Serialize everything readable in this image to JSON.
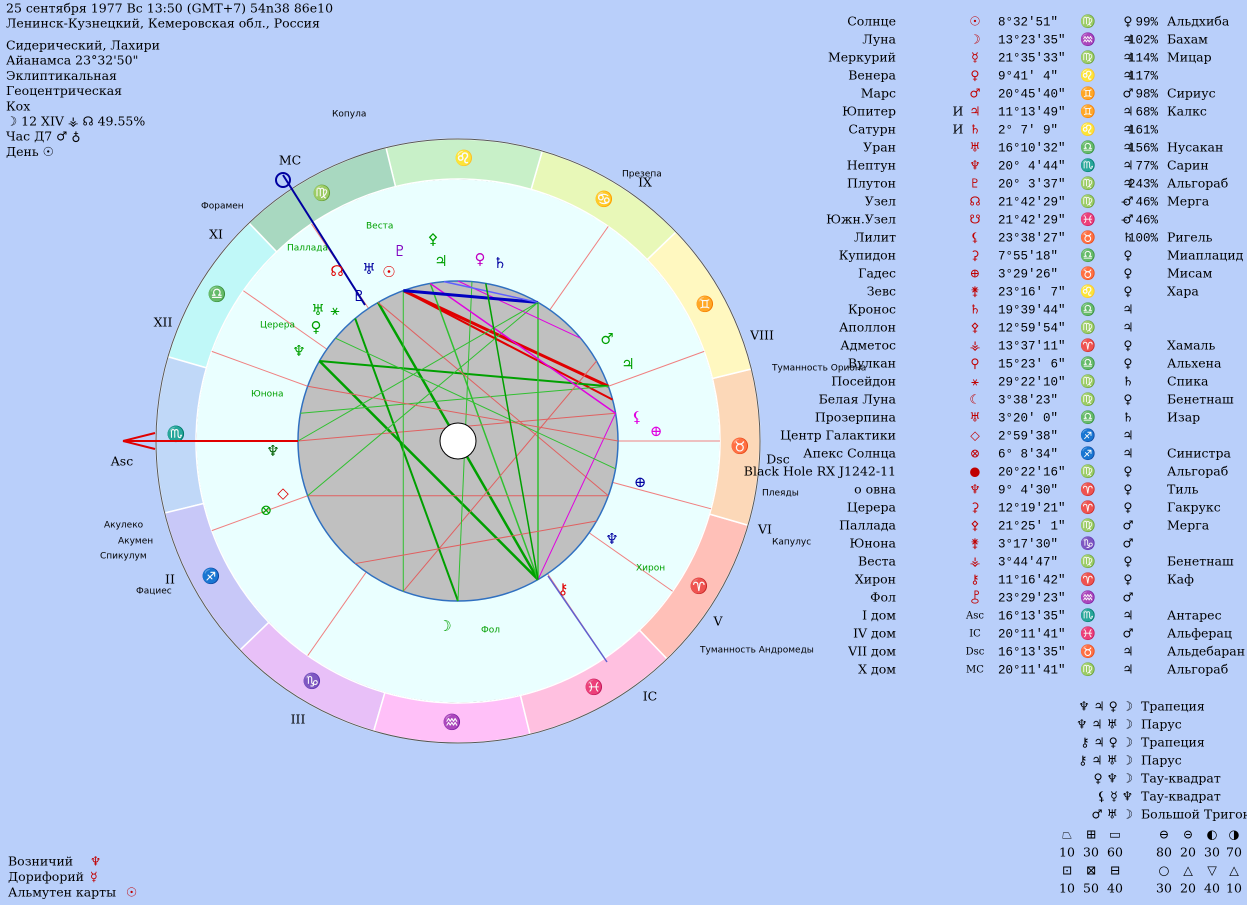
{
  "header": {
    "lines": [
      "25 сентября 1977  Вс  13:50 (GMT+7) 54n38  86e10",
      "Ленинск-Кузнецкий, Кемеровская обл., Россия"
    ],
    "settings": [
      "Сидерический, Лахири",
      "Айанамса 23°32'50\"",
      "Эклиптикальная",
      "Геоцентрическая",
      "Кох",
      "☽  12 XIV  ⚶  ☊ 49.55%",
      "Час Д7 ♂ ♁",
      "День ☉"
    ]
  },
  "planets": [
    {
      "name": "Солнце",
      "glyph": "☉",
      "position": "8°32'51\"",
      "sign": "♍",
      "ruler": "♀",
      "strength": "99%",
      "star": "Альдхиба"
    },
    {
      "name": "Луна",
      "glyph": "☽",
      "position": "13°23'35\"",
      "sign": "♒",
      "ruler": "♃",
      "strength": "102%",
      "star": "Бахам"
    },
    {
      "name": "Меркурий",
      "glyph": "☿",
      "position": "21°35'33\"",
      "sign": "♍",
      "ruler": "♃",
      "strength": "114%",
      "star": "Мицар"
    },
    {
      "name": "Венера",
      "glyph": "♀",
      "position": "9°41' 4\"",
      "sign": "♌",
      "ruler": "♃",
      "strength": "117%"
    },
    {
      "name": "Марс",
      "glyph": "♂",
      "position": "20°45'40\"",
      "sign": "♊",
      "ruler": "♂",
      "strength": "98%",
      "star": "Сириус"
    },
    {
      "name": "Юпитер",
      "retro": "И",
      "glyph": "♃",
      "position": "11°13'49\"",
      "sign": "♊",
      "ruler": "♃",
      "strength": "68%",
      "star": "Калкс"
    },
    {
      "name": "Сатурн",
      "retro": "И",
      "glyph": "♄",
      "position": "2° 7' 9\"",
      "sign": "♌",
      "ruler": "♃",
      "strength": "161%"
    },
    {
      "name": "Уран",
      "glyph": "♅",
      "position": "16°10'32\"",
      "sign": "♎",
      "ruler": "♃",
      "strength": "156%",
      "star": "Нусакан"
    },
    {
      "name": "Нептун",
      "glyph": "♆",
      "position": "20° 4'44\"",
      "sign": "♏",
      "ruler": "♃",
      "strength": "77%",
      "star": "Сарин"
    },
    {
      "name": "Плутон",
      "glyph": "♇",
      "position": "20° 3'37\"",
      "sign": "♍",
      "ruler": "♃",
      "strength": "243%",
      "star": "Альгораб"
    },
    {
      "name": "Узел",
      "glyph": "☊",
      "position": "21°42'29\"",
      "sign": "♍",
      "ruler": "♂",
      "strength": "– 46%",
      "star": "Мерга"
    },
    {
      "name": "Южн.Узел",
      "glyph": "☋",
      "position": "21°42'29\"",
      "sign": "♓",
      "ruler": "♂",
      "strength": "– 46%"
    },
    {
      "name": "Лилит",
      "glyph": "⚸",
      "position": "23°38'27\"",
      "sign": "♉",
      "ruler": "♄",
      "strength": "100%",
      "star": "Ригель"
    },
    {
      "name": "Купидон",
      "glyph": "⚳",
      "position": "7°55'18\"",
      "sign": "♎",
      "ruler": "♀",
      "star": "Миаплацид"
    },
    {
      "name": "Гадес",
      "glyph": "⊕",
      "position": "3°29'26\"",
      "sign": "♉",
      "ruler": "♀",
      "star": "Мисам"
    },
    {
      "name": "Зевс",
      "glyph": "⚵",
      "position": "23°16' 7\"",
      "sign": "♌",
      "ruler": "♀",
      "star": "Хара"
    },
    {
      "name": "Кронос",
      "glyph": "♄",
      "position": "19°39'44\"",
      "sign": "♎",
      "ruler": "♃"
    },
    {
      "name": "Аполлон",
      "glyph": "⚴",
      "position": "12°59'54\"",
      "sign": "♍",
      "ruler": "♃"
    },
    {
      "name": "Адметос",
      "glyph": "⚶",
      "position": "13°37'11\"",
      "sign": "♈",
      "ruler": "♀",
      "star": "Хамаль"
    },
    {
      "name": "Вулкан",
      "glyph": "⚲",
      "position": "15°23' 6\"",
      "sign": "♎",
      "ruler": "♀",
      "star": "Альхена"
    },
    {
      "name": "Посейдон",
      "glyph": "⚹",
      "position": "29°22'10\"",
      "sign": "♍",
      "ruler": "♄",
      "star": "Спика"
    },
    {
      "name": "Белая Луна",
      "glyph": "☾",
      "position": "3°38'23\"",
      "sign": "♍",
      "ruler": "♀",
      "star": "Бенетнаш"
    },
    {
      "name": "Прозерпина",
      "glyph": "♅",
      "position": "3°20' 0\"",
      "sign": "♎",
      "ruler": "♄",
      "star": "Изар"
    },
    {
      "name": "Центр Галактики",
      "glyph": "◇",
      "position": "2°59'38\"",
      "sign": "♐",
      "ruler": "♃"
    },
    {
      "name": "Апекс Солнца",
      "glyph": "⊗",
      "position": "6° 8'34\"",
      "sign": "♐",
      "ruler": "♃",
      "star": "Синистра"
    },
    {
      "name": "Black Hole RX J1242-11",
      "glyph": "●",
      "position": "20°22'16\"",
      "sign": "♍",
      "ruler": "♀",
      "star": "Альгораб"
    },
    {
      "name": "о овна",
      "glyph": "♆",
      "position": "9° 4'30\"",
      "sign": "♈",
      "ruler": "♀",
      "star": "Тиль"
    },
    {
      "name": "Церера",
      "glyph": "⚳",
      "position": "12°19'21\"",
      "sign": "♈",
      "ruler": "♀",
      "star": "Гакрукс"
    },
    {
      "name": "Паллада",
      "glyph": "⚴",
      "position": "21°25' 1\"",
      "sign": "♍",
      "ruler": "♂",
      "star": "Мерга"
    },
    {
      "name": "Юнона",
      "glyph": "⚵",
      "position": "3°17'30\"",
      "sign": "♑",
      "ruler": "♂"
    },
    {
      "name": "Веста",
      "glyph": "⚶",
      "position": "3°44'47\"",
      "sign": "♍",
      "ruler": "♀",
      "star": "Бенетнаш"
    },
    {
      "name": "Хирон",
      "glyph": "⚷",
      "position": "11°16'42\"",
      "sign": "♈",
      "ruler": "♀",
      "star": "Каф"
    },
    {
      "name": "Фол",
      "glyph": "⯛",
      "position": "23°29'23\"",
      "sign": "♒",
      "ruler": "♂"
    },
    {
      "name": "I дом",
      "glyph": "Asc",
      "position": "16°13'35\"",
      "sign": "♏",
      "ruler": "♃",
      "star": "Антарес"
    },
    {
      "name": "IV дом",
      "glyph": "IC",
      "position": "20°11'41\"",
      "sign": "♓",
      "ruler": "♂",
      "star": "Альферац"
    },
    {
      "name": "VII дом",
      "glyph": "Dsc",
      "position": "16°13'35\"",
      "sign": "♉",
      "ruler": "♃",
      "star": "Альдебаран"
    },
    {
      "name": "X дом",
      "glyph": "MC",
      "position": "20°11'41\"",
      "sign": "♍",
      "ruler": "♃",
      "star": "Альгораб"
    }
  ],
  "configurations": [
    {
      "glyphs": "♆ ♃ ♀ ☽",
      "name": "Трапеция"
    },
    {
      "glyphs": "♆ ♃ ♅ ☽",
      "name": "Парус"
    },
    {
      "glyphs": "⚷ ♃ ♀ ☽",
      "name": "Трапеция"
    },
    {
      "glyphs": "⚷ ♃ ♅ ☽",
      "name": "Парус"
    },
    {
      "glyphs": "♀ ♆ ☽",
      "name": "Тау-квадрат"
    },
    {
      "glyphs": "⚸ ☿ ♆",
      "name": "Тау-квадрат"
    },
    {
      "glyphs": "♂ ♅ ☽",
      "name": "Большой Тригон"
    }
  ],
  "rulers": [
    {
      "label": "Возничий",
      "glyph": "♆"
    },
    {
      "label": "Дорифорий",
      "glyph": "☿"
    },
    {
      "label": "Альмутен карты",
      "glyph": "☉"
    }
  ],
  "balance": {
    "rows": [
      {
        "glyphs": [
          "⏢",
          "⊞",
          "▭",
          "⊖",
          "⊝",
          "◐",
          "◑"
        ],
        "values": [
          10,
          30,
          60,
          80,
          20,
          30,
          70
        ]
      },
      {
        "glyphs": [
          "⊡",
          "⊠",
          "⊟",
          "○",
          "△",
          "▽",
          "△"
        ],
        "values": [
          10,
          50,
          40,
          30,
          20,
          40,
          10
        ]
      }
    ]
  },
  "wheel": {
    "signs": [
      {
        "glyph": "♈",
        "color": "#ffc0b8"
      },
      {
        "glyph": "♉",
        "color": "#fcd8b8"
      },
      {
        "glyph": "♊",
        "color": "#fff8c0"
      },
      {
        "glyph": "♋",
        "color": "#e8f8b8"
      },
      {
        "glyph": "♌",
        "color": "#c8f0c8"
      },
      {
        "glyph": "♍",
        "color": "#a8d8c0"
      },
      {
        "glyph": "♎",
        "color": "#c0f8f8"
      },
      {
        "glyph": "♏",
        "color": "#c0d8f8"
      },
      {
        "glyph": "♐",
        "color": "#c8c8f8"
      },
      {
        "glyph": "♑",
        "color": "#e8c0f8"
      },
      {
        "glyph": "♒",
        "color": "#ffc0f8"
      },
      {
        "glyph": "♓",
        "color": "#ffc0e0"
      }
    ],
    "houses": [
      "Asc",
      "II",
      "III",
      "IC",
      "V",
      "VI",
      "Dsc",
      "VIII",
      "IX",
      "MC",
      "XI",
      "XII"
    ],
    "stars": [
      "Копула",
      "Презепа",
      "Форамен",
      "Туманность Ориона",
      "Плеяды",
      "Капулус",
      "Туманность Андромеды",
      "Акулеко",
      "Акумен",
      "Спикулум",
      "Фациес"
    ],
    "names": [
      "Веста",
      "Паллада",
      "Церера",
      "Юнона",
      "Хирон",
      "Фол"
    ],
    "glyphs": [
      {
        "glyph": "♇",
        "color": "#8000c0"
      },
      {
        "glyph": "⚴",
        "color": "#00a000"
      },
      {
        "glyph": "☊",
        "color": "#e00000"
      },
      {
        "glyph": "♅",
        "color": "#0000a0"
      },
      {
        "glyph": "☉",
        "color": "#e00000"
      },
      {
        "glyph": "♃",
        "color": "#00a000"
      },
      {
        "glyph": "♀",
        "color": "#c000c0"
      },
      {
        "glyph": "♄",
        "color": "#0000a0"
      },
      {
        "glyph": "♇",
        "color": "#0000a0"
      },
      {
        "glyph": "♅",
        "color": "#00a000"
      },
      {
        "glyph": "⚹",
        "color": "#00a000"
      },
      {
        "glyph": "♀",
        "color": "#00a000"
      },
      {
        "glyph": "♆",
        "color": "#00a000"
      },
      {
        "glyph": "♂",
        "color": "#00a000"
      },
      {
        "glyph": "♃",
        "color": "#00a000"
      },
      {
        "glyph": "⚸",
        "color": "#e000e0"
      },
      {
        "glyph": "⊕",
        "color": "#e000e0"
      },
      {
        "glyph": "♆",
        "color": "#006000"
      },
      {
        "glyph": "⊕",
        "color": "#0000a0"
      },
      {
        "glyph": "♆",
        "color": "#0000a0"
      },
      {
        "glyph": "⚷",
        "color": "#e00000"
      },
      {
        "glyph": "☽",
        "color": "#00a000"
      },
      {
        "glyph": "◇",
        "color": "#e00000"
      },
      {
        "glyph": "⊗",
        "color": "#00a000"
      }
    ]
  }
}
